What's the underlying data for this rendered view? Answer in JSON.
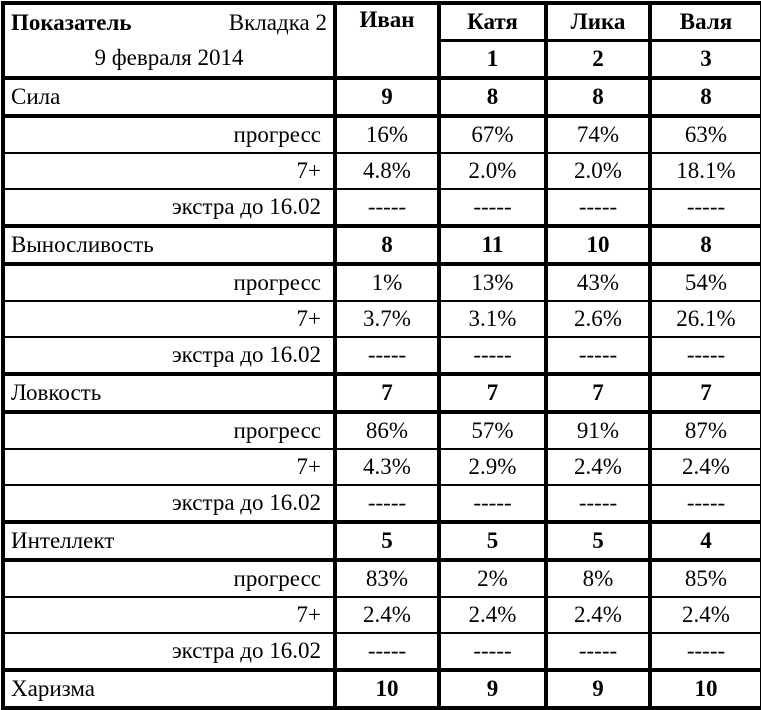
{
  "header": {
    "title": "Показатель",
    "tab": "Вкладка 2",
    "date": "9 февраля 2014",
    "columns": [
      {
        "name": "Иван",
        "num": ""
      },
      {
        "name": "Катя",
        "num": "1"
      },
      {
        "name": "Лика",
        "num": "2"
      },
      {
        "name": "Валя",
        "num": "3"
      }
    ]
  },
  "groups": [
    {
      "name": "Сила",
      "values": [
        "9",
        "8",
        "8",
        "8"
      ],
      "rows": [
        {
          "label": "прогресс",
          "values": [
            "16%",
            "67%",
            "74%",
            "63%"
          ]
        },
        {
          "label": "7+",
          "values": [
            "4.8%",
            "2.0%",
            "2.0%",
            "18.1%"
          ]
        },
        {
          "label": "экстра до 16.02",
          "values": [
            "-----",
            "-----",
            "-----",
            "-----"
          ]
        }
      ]
    },
    {
      "name": "Выносливость",
      "values": [
        "8",
        "11",
        "10",
        "8"
      ],
      "rows": [
        {
          "label": "прогресс",
          "values": [
            "1%",
            "13%",
            "43%",
            "54%"
          ]
        },
        {
          "label": "7+",
          "values": [
            "3.7%",
            "3.1%",
            "2.6%",
            "26.1%"
          ]
        },
        {
          "label": "экстра до 16.02",
          "values": [
            "-----",
            "-----",
            "-----",
            "-----"
          ]
        }
      ]
    },
    {
      "name": "Ловкость",
      "values": [
        "7",
        "7",
        "7",
        "7"
      ],
      "rows": [
        {
          "label": "прогресс",
          "values": [
            "86%",
            "57%",
            "91%",
            "87%"
          ]
        },
        {
          "label": "7+",
          "values": [
            "4.3%",
            "2.9%",
            "2.4%",
            "2.4%"
          ]
        },
        {
          "label": "экстра до 16.02",
          "values": [
            "-----",
            "-----",
            "-----",
            "-----"
          ]
        }
      ]
    },
    {
      "name": "Интеллект",
      "values": [
        "5",
        "5",
        "5",
        "4"
      ],
      "rows": [
        {
          "label": "прогресс",
          "values": [
            "83%",
            "2%",
            "8%",
            "85%"
          ]
        },
        {
          "label": "7+",
          "values": [
            "2.4%",
            "2.4%",
            "2.4%",
            "2.4%"
          ]
        },
        {
          "label": "экстра до 16.02",
          "values": [
            "-----",
            "-----",
            "-----",
            "-----"
          ]
        }
      ]
    },
    {
      "name": "Харизма",
      "values": [
        "10",
        "9",
        "9",
        "10"
      ],
      "rows": []
    }
  ]
}
